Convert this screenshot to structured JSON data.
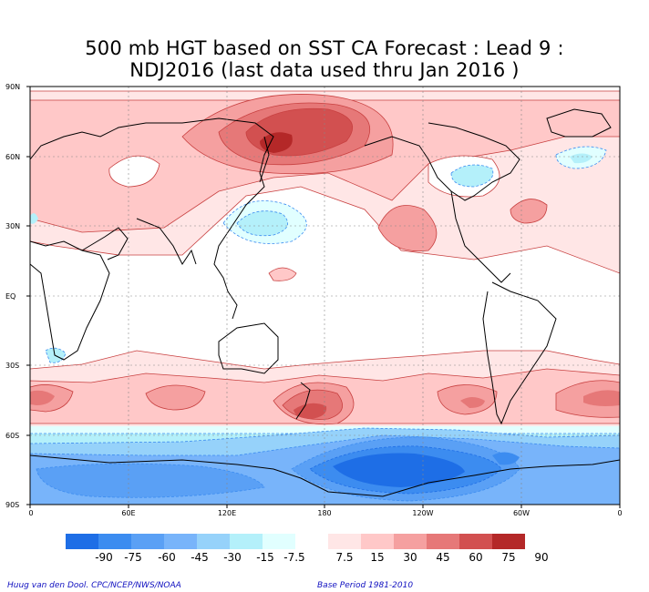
{
  "title": {
    "line1": "500 mb HGT based on SST CA Forecast : Lead 9 :",
    "line2": "NDJ2016 (last data used thru Jan 2016 )"
  },
  "axes": {
    "lat_labels": [
      "90N",
      "60N",
      "30N",
      "EQ",
      "30S",
      "60S",
      "90S"
    ],
    "lon_labels": [
      "0",
      "60E",
      "120E",
      "180",
      "120W",
      "60W",
      "0"
    ]
  },
  "colorbar": {
    "labels": [
      "-90",
      "-75",
      "-60",
      "-45",
      "-30",
      "-15",
      "-7.5",
      "7.5",
      "15",
      "30",
      "45",
      "60",
      "75",
      "90"
    ],
    "colors": [
      "#1e6ee6",
      "#3c8cf0",
      "#5aa0f5",
      "#78b4fa",
      "#96d2fa",
      "#b4f0fa",
      "#e1ffff",
      "#ffffff",
      "#ffe6e6",
      "#ffc8c8",
      "#f5a0a0",
      "#e67878",
      "#d25050",
      "#b42828"
    ]
  },
  "credits": {
    "left": "Huug van den Dool. CPC/NCEP/NWS/NOAA",
    "right": "Base Period 1981-2010"
  }
}
